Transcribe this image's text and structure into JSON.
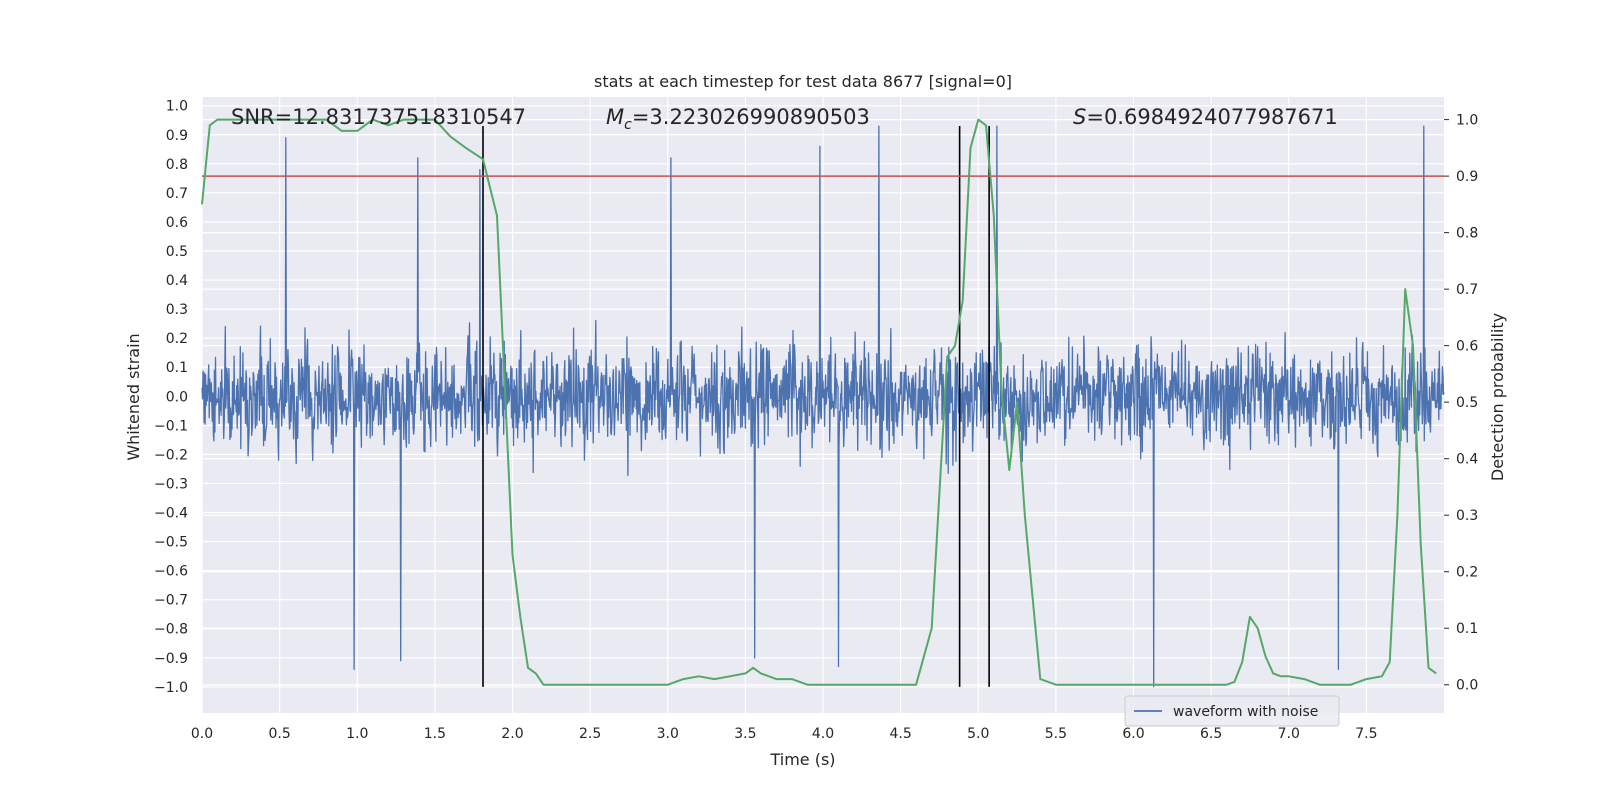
{
  "chart_data": {
    "type": "line",
    "title": "stats at each timestep for test data 8677 [signal=0]",
    "xlabel": "Time (s)",
    "ylabel_left": "Whitened strain",
    "ylabel_right": "Detection probability",
    "xlim": [
      0.0,
      8.0
    ],
    "ylim_left": [
      -1.09,
      1.03
    ],
    "ylim_right": [
      -0.05,
      1.04
    ],
    "x_ticks": [
      "0.0",
      "0.5",
      "1.0",
      "1.5",
      "2.0",
      "2.5",
      "3.0",
      "3.5",
      "4.0",
      "4.5",
      "5.0",
      "5.5",
      "6.0",
      "6.5",
      "7.0",
      "7.5"
    ],
    "y_left_ticks": [
      "1.0",
      "0.9",
      "0.8",
      "0.7",
      "0.6",
      "0.5",
      "0.4",
      "0.3",
      "0.2",
      "0.1",
      "0.0",
      "−0.1",
      "−0.2",
      "−0.3",
      "−0.4",
      "−0.5",
      "−0.6",
      "−0.7",
      "−0.8",
      "−0.9",
      "−1.0"
    ],
    "y_right_ticks": [
      "1.0",
      "0.9",
      "0.8",
      "0.7",
      "0.6",
      "0.5",
      "0.4",
      "0.3",
      "0.2",
      "0.1",
      "0.0"
    ],
    "grid": true,
    "legend_position": "lower-right",
    "background_color": "#eaeaf2",
    "annotations": {
      "snr": "SNR=12.831737518310547",
      "mc_symbol": "M",
      "mc_sub": "c",
      "mc_value": "=3.223026990890503",
      "s_symbol": "S",
      "s_value": "=0.6984924077987671"
    },
    "threshold": {
      "value": 0.9,
      "axis": "right",
      "color": "#c44e52"
    },
    "vertical_markers": [
      {
        "x": 1.81,
        "ymin": -1.0,
        "ymax": 0.93
      },
      {
        "x": 4.88,
        "ymin": -1.0,
        "ymax": 0.93
      },
      {
        "x": 5.07,
        "ymin": -1.0,
        "ymax": 0.93
      }
    ],
    "series": [
      {
        "name": "waveform with noise",
        "axis": "left",
        "color": "#4c72b0",
        "description": "dense noisy whitened strain",
        "peaks": [
          {
            "x": 0.54,
            "y": 0.89
          },
          {
            "x": 1.39,
            "y": 0.82
          },
          {
            "x": 1.79,
            "y": 0.78
          },
          {
            "x": 3.02,
            "y": 0.82
          },
          {
            "x": 3.98,
            "y": 0.86
          },
          {
            "x": 4.36,
            "y": 0.93
          },
          {
            "x": 5.12,
            "y": 0.93
          },
          {
            "x": 7.87,
            "y": 0.93
          },
          {
            "x": 0.98,
            "y": -0.94
          },
          {
            "x": 1.28,
            "y": -0.91
          },
          {
            "x": 3.56,
            "y": -0.9
          },
          {
            "x": 4.1,
            "y": -0.93
          },
          {
            "x": 6.13,
            "y": -1.0
          },
          {
            "x": 7.32,
            "y": -0.94
          }
        ]
      },
      {
        "name": "",
        "axis": "right",
        "color": "#55a868",
        "x": [
          0.0,
          0.05,
          0.1,
          0.2,
          0.4,
          0.6,
          0.8,
          0.9,
          1.0,
          1.1,
          1.2,
          1.3,
          1.4,
          1.5,
          1.6,
          1.7,
          1.81,
          1.9,
          2.0,
          2.05,
          2.1,
          2.15,
          2.2,
          2.3,
          2.4,
          2.5,
          2.6,
          2.7,
          2.8,
          2.9,
          3.0,
          3.1,
          3.2,
          3.3,
          3.4,
          3.5,
          3.55,
          3.6,
          3.7,
          3.8,
          3.9,
          4.0,
          4.2,
          4.4,
          4.6,
          4.7,
          4.8,
          4.85,
          4.9,
          4.95,
          5.0,
          5.05,
          5.1,
          5.15,
          5.2,
          5.25,
          5.3,
          5.4,
          5.5,
          5.7,
          6.0,
          6.2,
          6.4,
          6.5,
          6.6,
          6.65,
          6.7,
          6.75,
          6.8,
          6.85,
          6.9,
          6.95,
          7.0,
          7.1,
          7.2,
          7.3,
          7.4,
          7.5,
          7.6,
          7.65,
          7.7,
          7.75,
          7.8,
          7.85,
          7.9,
          7.95
        ],
        "y": [
          0.85,
          0.99,
          1.0,
          1.0,
          1.0,
          1.0,
          1.0,
          0.98,
          0.98,
          1.0,
          0.99,
          1.0,
          1.0,
          1.0,
          0.97,
          0.95,
          0.93,
          0.83,
          0.23,
          0.12,
          0.03,
          0.02,
          0.0,
          0.0,
          0.0,
          0.0,
          0.0,
          0.0,
          0.0,
          0.0,
          0.0,
          0.01,
          0.015,
          0.01,
          0.015,
          0.02,
          0.03,
          0.02,
          0.01,
          0.01,
          0.0,
          0.0,
          0.0,
          0.0,
          0.0,
          0.1,
          0.58,
          0.6,
          0.68,
          0.95,
          1.0,
          0.99,
          0.83,
          0.52,
          0.38,
          0.5,
          0.3,
          0.01,
          0.0,
          0.0,
          0.0,
          0.0,
          0.0,
          0.0,
          0.0,
          0.005,
          0.04,
          0.12,
          0.1,
          0.05,
          0.02,
          0.015,
          0.015,
          0.01,
          0.0,
          0.0,
          0.0,
          0.01,
          0.015,
          0.04,
          0.3,
          0.7,
          0.6,
          0.25,
          0.03,
          0.02
        ]
      }
    ]
  }
}
